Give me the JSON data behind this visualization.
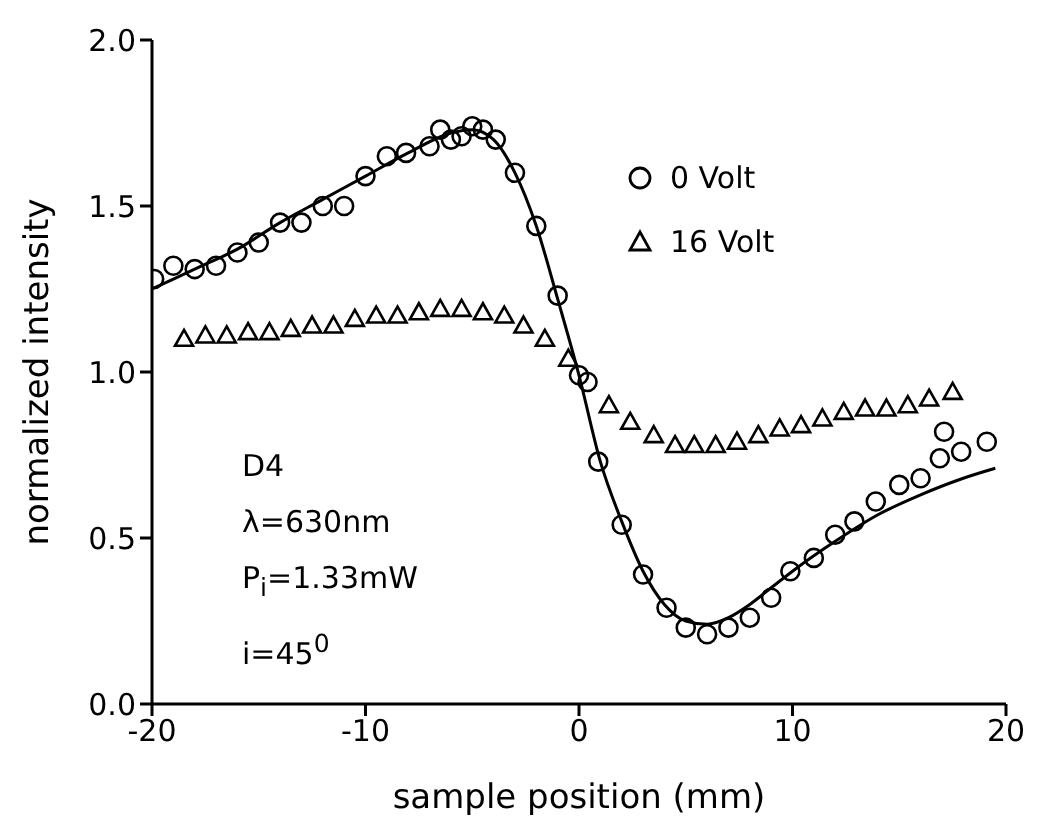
{
  "chart_data": {
    "type": "scatter",
    "xlabel": "sample position (mm)",
    "ylabel": "normalized intensity",
    "xlim": [
      -20,
      20
    ],
    "xticks": [
      -20,
      -10,
      0,
      10,
      20
    ],
    "ylim": [
      0,
      2
    ],
    "yticks": [
      {
        "value": 0,
        "label": "0.0"
      },
      {
        "value": 0.5,
        "label": "0.5"
      },
      {
        "value": 1,
        "label": "1.0"
      },
      {
        "value": 1.5,
        "label": "1.5"
      },
      {
        "value": 2,
        "label": "2.0"
      }
    ],
    "legend": "top right",
    "grid": false,
    "annotations": [
      "D4",
      "λ=630nm",
      "P$_{i}$=1.33mW",
      "i=45$^{0}$"
    ],
    "series": [
      {
        "name": "0 Volt",
        "marker": "circle",
        "color": "#000000",
        "x": [
          -19.9,
          -19,
          -18,
          -17,
          -16,
          -15,
          -14,
          -13,
          -12,
          -11,
          -10,
          -9,
          -8.1,
          -7,
          -6.5,
          -6,
          -5.5,
          -5,
          -4.5,
          -3.9,
          -3,
          -2,
          -1,
          0,
          0.4,
          0.9,
          2,
          3,
          4.1,
          5,
          6,
          7,
          8,
          9,
          9.9,
          11,
          12,
          12.9,
          13.9,
          15,
          16,
          16.9,
          17.1,
          17.9,
          19.1
        ],
        "values": [
          1.28,
          1.32,
          1.31,
          1.32,
          1.36,
          1.39,
          1.45,
          1.45,
          1.5,
          1.5,
          1.59,
          1.65,
          1.66,
          1.68,
          1.73,
          1.7,
          1.71,
          1.74,
          1.73,
          1.7,
          1.6,
          1.44,
          1.23,
          0.99,
          0.97,
          0.73,
          0.54,
          0.39,
          0.29,
          0.23,
          0.21,
          0.23,
          0.26,
          0.32,
          0.4,
          0.44,
          0.51,
          0.55,
          0.61,
          0.66,
          0.68,
          0.74,
          0.82,
          0.76,
          0.79
        ]
      },
      {
        "name": "16 Volt",
        "marker": "triangle",
        "color": "#000000",
        "x": [
          -18.5,
          -17.5,
          -16.5,
          -15.5,
          -14.5,
          -13.5,
          -12.5,
          -11.5,
          -10.5,
          -9.5,
          -8.5,
          -7.5,
          -6.5,
          -5.5,
          -4.5,
          -3.5,
          -2.6,
          -1.6,
          -0.5,
          1.4,
          2.4,
          3.5,
          4.5,
          5.4,
          6.4,
          7.4,
          8.4,
          9.4,
          10.4,
          11.4,
          12.4,
          13.4,
          14.4,
          15.4,
          16.4,
          17.5
        ],
        "values": [
          1.1,
          1.11,
          1.11,
          1.12,
          1.12,
          1.13,
          1.14,
          1.14,
          1.16,
          1.17,
          1.17,
          1.18,
          1.19,
          1.19,
          1.18,
          1.17,
          1.14,
          1.1,
          1.04,
          0.9,
          0.85,
          0.81,
          0.78,
          0.78,
          0.78,
          0.79,
          0.81,
          0.83,
          0.84,
          0.86,
          0.88,
          0.89,
          0.89,
          0.9,
          0.92,
          0.94
        ]
      },
      {
        "type": "line",
        "marker": "none",
        "line_style": "solid",
        "color": "#000000",
        "x": [
          -20,
          -18,
          -16,
          -14,
          -12,
          -10,
          -8,
          -6,
          -5,
          -4,
          -3,
          -2,
          -1,
          0,
          1,
          2,
          3,
          4,
          5,
          6,
          7,
          8,
          9,
          10,
          12,
          14,
          16,
          18,
          19.5
        ],
        "values": [
          1.25,
          1.31,
          1.37,
          1.45,
          1.52,
          1.59,
          1.66,
          1.72,
          1.73,
          1.7,
          1.6,
          1.44,
          1.22,
          0.99,
          0.73,
          0.55,
          0.4,
          0.3,
          0.25,
          0.24,
          0.26,
          0.3,
          0.35,
          0.4,
          0.49,
          0.57,
          0.63,
          0.68,
          0.71
        ]
      }
    ]
  }
}
